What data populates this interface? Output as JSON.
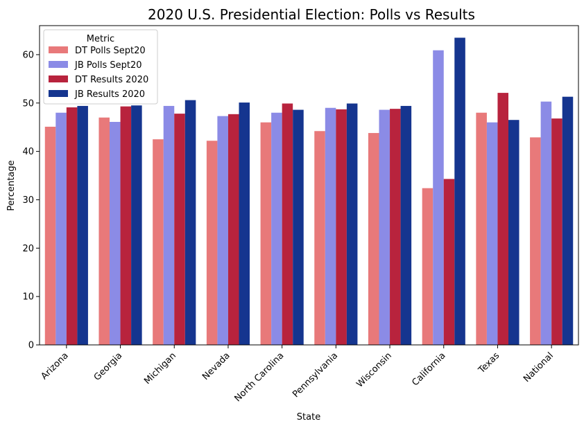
{
  "chart_data": {
    "type": "bar",
    "title": "2020 U.S. Presidential Election: Polls vs Results",
    "xlabel": "State",
    "ylabel": "Percentage",
    "ylim": [
      0,
      66
    ],
    "yticks": [
      0,
      10,
      20,
      30,
      40,
      50,
      60
    ],
    "grid": false,
    "legend_title": "Metric",
    "legend_position": "top-left",
    "categories": [
      "Arizona",
      "Georgia",
      "Michigan",
      "Nevada",
      "North Carolina",
      "Pennsylvania",
      "Wisconsin",
      "California",
      "Texas",
      "National"
    ],
    "series": [
      {
        "name": "DT Polls Sept20",
        "color": "#e8797a",
        "values": [
          45.1,
          47.0,
          42.5,
          42.2,
          46.0,
          44.2,
          43.8,
          32.4,
          48.0,
          42.9
        ]
      },
      {
        "name": "JB Polls Sept20",
        "color": "#8b8be6",
        "values": [
          48.0,
          46.1,
          49.4,
          47.3,
          48.0,
          49.0,
          48.6,
          60.9,
          46.0,
          50.3
        ]
      },
      {
        "name": "DT Results 2020",
        "color": "#b8233d",
        "values": [
          49.1,
          49.3,
          47.8,
          47.7,
          49.9,
          48.7,
          48.8,
          34.3,
          52.1,
          46.8
        ]
      },
      {
        "name": "JB Results 2020",
        "color": "#15358f",
        "values": [
          49.4,
          49.5,
          50.6,
          50.1,
          48.6,
          49.9,
          49.4,
          63.5,
          46.5,
          51.3
        ]
      }
    ]
  }
}
